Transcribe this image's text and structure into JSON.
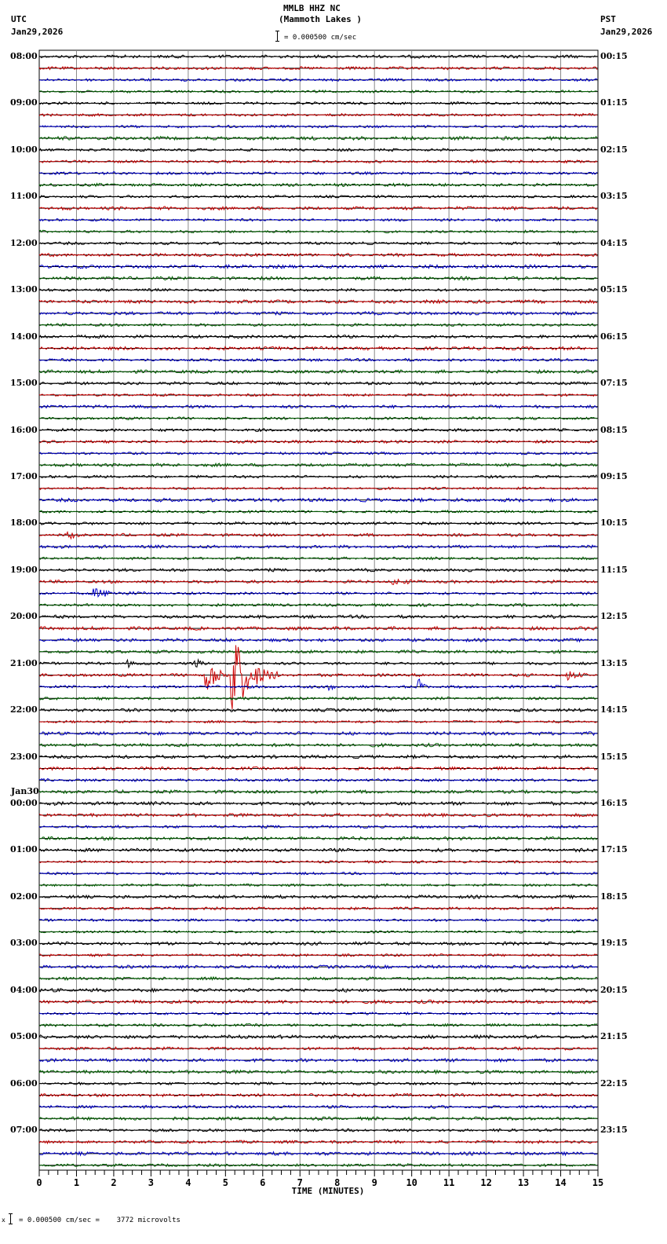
{
  "header": {
    "station": "MMLB HHZ NC",
    "location": "(Mammoth Lakes )",
    "scale_text": "= 0.000500 cm/sec",
    "left_tz": "UTC",
    "left_date": "Jan29,2026",
    "right_tz": "PST",
    "right_date": "Jan29,2026"
  },
  "footer": {
    "scale_text": "= 0.000500 cm/sec =    3772 microvolts",
    "marker": "x"
  },
  "chart_data": {
    "type": "line",
    "title": "MMLB HHZ NC (Mammoth Lakes ) helicorder",
    "xlabel": "TIME (MINUTES)",
    "ylabel": "",
    "xlim": [
      0,
      15
    ],
    "x_ticks": [
      "0",
      "1",
      "2",
      "3",
      "4",
      "5",
      "6",
      "7",
      "8",
      "9",
      "10",
      "11",
      "12",
      "13",
      "14",
      "15"
    ],
    "traces_per_hour": 4,
    "trace_colors": [
      "#000000",
      "#cc0000",
      "#0000cc",
      "#006400"
    ],
    "left_labels": [
      {
        "row": 0,
        "text": "08:00"
      },
      {
        "row": 4,
        "text": "09:00"
      },
      {
        "row": 8,
        "text": "10:00"
      },
      {
        "row": 12,
        "text": "11:00"
      },
      {
        "row": 16,
        "text": "12:00"
      },
      {
        "row": 20,
        "text": "13:00"
      },
      {
        "row": 24,
        "text": "14:00"
      },
      {
        "row": 28,
        "text": "15:00"
      },
      {
        "row": 32,
        "text": "16:00"
      },
      {
        "row": 36,
        "text": "17:00"
      },
      {
        "row": 40,
        "text": "18:00"
      },
      {
        "row": 44,
        "text": "19:00"
      },
      {
        "row": 48,
        "text": "20:00"
      },
      {
        "row": 52,
        "text": "21:00"
      },
      {
        "row": 56,
        "text": "22:00"
      },
      {
        "row": 60,
        "text": "23:00"
      },
      {
        "row": 64,
        "text": "00:00",
        "date": "Jan30"
      },
      {
        "row": 68,
        "text": "01:00"
      },
      {
        "row": 72,
        "text": "02:00"
      },
      {
        "row": 76,
        "text": "03:00"
      },
      {
        "row": 80,
        "text": "04:00"
      },
      {
        "row": 84,
        "text": "05:00"
      },
      {
        "row": 88,
        "text": "06:00"
      },
      {
        "row": 92,
        "text": "07:00"
      }
    ],
    "right_labels": [
      {
        "row": 0,
        "text": "00:15"
      },
      {
        "row": 4,
        "text": "01:15"
      },
      {
        "row": 8,
        "text": "02:15"
      },
      {
        "row": 12,
        "text": "03:15"
      },
      {
        "row": 16,
        "text": "04:15"
      },
      {
        "row": 20,
        "text": "05:15"
      },
      {
        "row": 24,
        "text": "06:15"
      },
      {
        "row": 28,
        "text": "07:15"
      },
      {
        "row": 32,
        "text": "08:15"
      },
      {
        "row": 36,
        "text": "09:15"
      },
      {
        "row": 40,
        "text": "10:15"
      },
      {
        "row": 44,
        "text": "11:15"
      },
      {
        "row": 48,
        "text": "12:15"
      },
      {
        "row": 52,
        "text": "13:15"
      },
      {
        "row": 56,
        "text": "14:15"
      },
      {
        "row": 60,
        "text": "15:15"
      },
      {
        "row": 64,
        "text": "16:15"
      },
      {
        "row": 68,
        "text": "17:15"
      },
      {
        "row": 72,
        "text": "18:15"
      },
      {
        "row": 76,
        "text": "19:15"
      },
      {
        "row": 80,
        "text": "20:15"
      },
      {
        "row": 84,
        "text": "21:15"
      },
      {
        "row": 88,
        "text": "22:15"
      },
      {
        "row": 92,
        "text": "23:15"
      }
    ],
    "total_traces": 96,
    "events": [
      {
        "row": 53,
        "minute": 4.5,
        "amp": 30,
        "dur": 0.6,
        "note": "large local event burst (21:15 red)"
      },
      {
        "row": 53,
        "minute": 5.2,
        "amp": 55,
        "dur": 1.2,
        "note": "large local event burst (21:15 red)"
      },
      {
        "row": 53,
        "minute": 14.2,
        "amp": 6,
        "dur": 0.5
      },
      {
        "row": 52,
        "minute": 4.2,
        "amp": 6,
        "dur": 0.3
      },
      {
        "row": 52,
        "minute": 2.4,
        "amp": 4,
        "dur": 0.2
      },
      {
        "row": 54,
        "minute": 7.8,
        "amp": 10,
        "dur": 0.3
      },
      {
        "row": 54,
        "minute": 10.2,
        "amp": 10,
        "dur": 0.3
      },
      {
        "row": 46,
        "minute": 1.5,
        "amp": 5,
        "dur": 1.5
      },
      {
        "row": 45,
        "minute": 9.5,
        "amp": 3,
        "dur": 1.0
      },
      {
        "row": 41,
        "minute": 0.8,
        "amp": 4,
        "dur": 0.5
      }
    ]
  }
}
